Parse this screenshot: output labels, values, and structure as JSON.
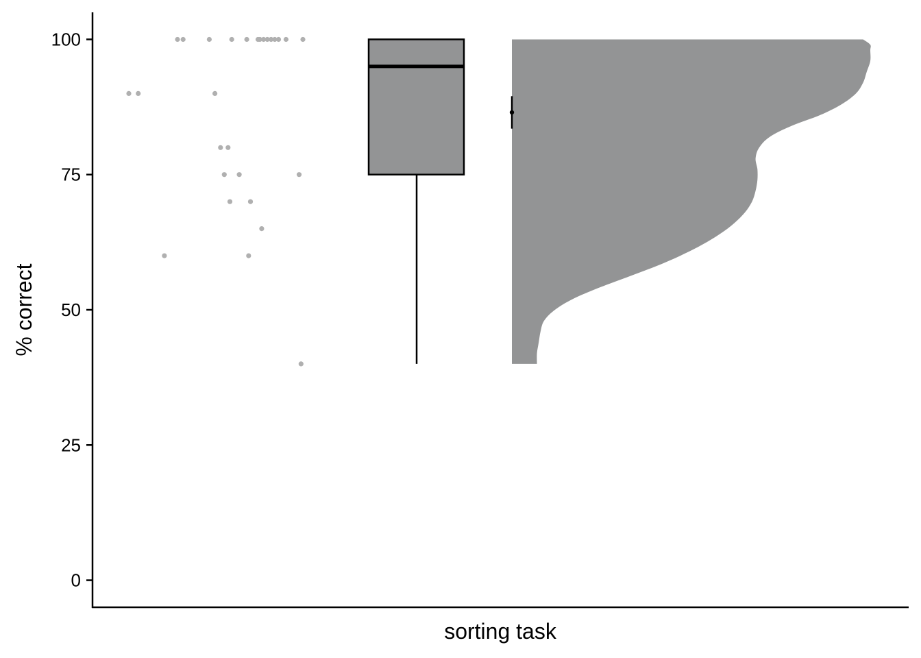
{
  "chart_data": {
    "type": "raincloud",
    "xlabel": "sorting task",
    "ylabel": "% correct",
    "ylim": [
      -5,
      105
    ],
    "yticks": [
      0,
      25,
      50,
      75,
      100
    ],
    "grid": false,
    "legend": "none",
    "colors": {
      "fill": "#939495",
      "points": "#b0b0b0",
      "stroke": "#000000"
    },
    "points": [
      {
        "jitter": 0.08,
        "y": 90
      },
      {
        "jitter": 0.13,
        "y": 90
      },
      {
        "jitter": 0.27,
        "y": 60
      },
      {
        "jitter": 0.34,
        "y": 100
      },
      {
        "jitter": 0.37,
        "y": 100
      },
      {
        "jitter": 0.51,
        "y": 100
      },
      {
        "jitter": 0.54,
        "y": 90
      },
      {
        "jitter": 0.57,
        "y": 80
      },
      {
        "jitter": 0.59,
        "y": 75
      },
      {
        "jitter": 0.61,
        "y": 80
      },
      {
        "jitter": 0.62,
        "y": 70
      },
      {
        "jitter": 0.63,
        "y": 100
      },
      {
        "jitter": 0.67,
        "y": 75
      },
      {
        "jitter": 0.71,
        "y": 100
      },
      {
        "jitter": 0.72,
        "y": 60
      },
      {
        "jitter": 0.73,
        "y": 70
      },
      {
        "jitter": 0.77,
        "y": 100
      },
      {
        "jitter": 0.78,
        "y": 100
      },
      {
        "jitter": 0.79,
        "y": 65
      },
      {
        "jitter": 0.8,
        "y": 100
      },
      {
        "jitter": 0.82,
        "y": 100
      },
      {
        "jitter": 0.84,
        "y": 100
      },
      {
        "jitter": 0.86,
        "y": 100
      },
      {
        "jitter": 0.88,
        "y": 100
      },
      {
        "jitter": 0.92,
        "y": 100
      },
      {
        "jitter": 0.99,
        "y": 75
      },
      {
        "jitter": 1.0,
        "y": 40
      },
      {
        "jitter": 1.01,
        "y": 100
      }
    ],
    "boxplot": {
      "min": 40,
      "q1": 75,
      "median": 95,
      "q3": 100,
      "max": 100
    },
    "mean": {
      "value": 86.5,
      "ci_low": 83.5,
      "ci_high": 89.5
    },
    "density": {
      "y": [
        40,
        42,
        44,
        46,
        48,
        50,
        52,
        54,
        56,
        58,
        60,
        62,
        64,
        66,
        68,
        70,
        72,
        74,
        76,
        78,
        80,
        82,
        84,
        86,
        88,
        90,
        92,
        94,
        96,
        98,
        99,
        100
      ],
      "d": [
        0.07,
        0.07,
        0.075,
        0.08,
        0.09,
        0.12,
        0.17,
        0.24,
        0.32,
        0.4,
        0.47,
        0.53,
        0.58,
        0.62,
        0.65,
        0.67,
        0.68,
        0.685,
        0.685,
        0.68,
        0.69,
        0.72,
        0.78,
        0.86,
        0.92,
        0.96,
        0.98,
        0.99,
        1.0,
        1.0,
        1.0,
        0.98
      ]
    }
  }
}
